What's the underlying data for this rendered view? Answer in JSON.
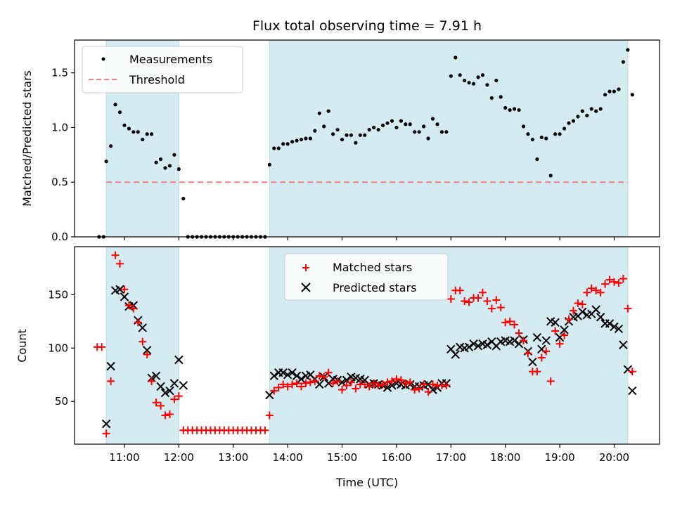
{
  "chart_data": {
    "type": "scatter",
    "title": "Flux total observing time = 7.91 h",
    "xlabel": "Time (UTC)",
    "x_tick_labels": [
      "11:00",
      "12:00",
      "13:00",
      "14:00",
      "15:00",
      "16:00",
      "17:00",
      "18:00",
      "19:00",
      "20:00"
    ],
    "xlim": [
      "10:05",
      "20:50"
    ],
    "shaded_regions": [
      {
        "start": "10:40",
        "end": "12:00"
      },
      {
        "start": "13:40",
        "end": "20:15"
      }
    ],
    "colors": {
      "shade": "#d4ebf2",
      "threshold": "#f08080",
      "matched": "#ff0000",
      "predicted": "#000000",
      "measurement": "#000000"
    },
    "top": {
      "ylabel": "Matched/Predicted stars",
      "ylim": [
        0,
        1.8
      ],
      "y_ticks": [
        0.0,
        0.5,
        1.0,
        1.5
      ],
      "threshold": 0.5,
      "threshold_x": [
        "10:40",
        "20:15"
      ],
      "legend": {
        "placement": "upper-left",
        "entries": [
          "Measurements",
          "Threshold"
        ]
      },
      "measurements": [
        [
          "10:32",
          0
        ],
        [
          "10:37",
          0
        ],
        [
          "10:40",
          0.69
        ],
        [
          "10:45",
          0.83
        ],
        [
          "10:50",
          1.21
        ],
        [
          "10:55",
          1.14
        ],
        [
          "11:00",
          1.02
        ],
        [
          "11:05",
          0.99
        ],
        [
          "11:10",
          0.96
        ],
        [
          "11:15",
          0.96
        ],
        [
          "11:20",
          0.89
        ],
        [
          "11:25",
          0.94
        ],
        [
          "11:30",
          0.94
        ],
        [
          "11:35",
          0.68
        ],
        [
          "11:40",
          0.71
        ],
        [
          "11:45",
          0.63
        ],
        [
          "11:50",
          0.65
        ],
        [
          "11:55",
          0.75
        ],
        [
          "12:00",
          0.62
        ],
        [
          "12:05",
          0.35
        ],
        [
          "12:10",
          0
        ],
        [
          "12:15",
          0
        ],
        [
          "12:20",
          0
        ],
        [
          "12:25",
          0
        ],
        [
          "12:30",
          0
        ],
        [
          "12:35",
          0
        ],
        [
          "12:40",
          0
        ],
        [
          "12:45",
          0
        ],
        [
          "12:50",
          0
        ],
        [
          "12:55",
          0
        ],
        [
          "13:00",
          0
        ],
        [
          "13:05",
          0
        ],
        [
          "13:10",
          0
        ],
        [
          "13:15",
          0
        ],
        [
          "13:20",
          0
        ],
        [
          "13:25",
          0
        ],
        [
          "13:30",
          0
        ],
        [
          "13:35",
          0
        ],
        [
          "13:40",
          0.66
        ],
        [
          "13:45",
          0.81
        ],
        [
          "13:50",
          0.81
        ],
        [
          "13:55",
          0.85
        ],
        [
          "14:00",
          0.85
        ],
        [
          "14:05",
          0.87
        ],
        [
          "14:10",
          0.88
        ],
        [
          "14:15",
          0.89
        ],
        [
          "14:20",
          0.9
        ],
        [
          "14:25",
          0.9
        ],
        [
          "14:30",
          0.97
        ],
        [
          "14:35",
          1.13
        ],
        [
          "14:40",
          1.01
        ],
        [
          "14:45",
          1.15
        ],
        [
          "14:50",
          0.94
        ],
        [
          "14:55",
          0.98
        ],
        [
          "15:00",
          0.89
        ],
        [
          "15:05",
          0.93
        ],
        [
          "15:10",
          0.93
        ],
        [
          "15:15",
          0.86
        ],
        [
          "15:20",
          0.93
        ],
        [
          "15:25",
          0.93
        ],
        [
          "15:30",
          0.98
        ],
        [
          "15:35",
          1.0
        ],
        [
          "15:40",
          0.98
        ],
        [
          "15:45",
          1.02
        ],
        [
          "15:50",
          1.04
        ],
        [
          "15:55",
          1.06
        ],
        [
          "16:00",
          1.0
        ],
        [
          "16:05",
          1.06
        ],
        [
          "16:10",
          1.03
        ],
        [
          "16:15",
          1.03
        ],
        [
          "16:20",
          0.96
        ],
        [
          "16:25",
          0.96
        ],
        [
          "16:30",
          1.01
        ],
        [
          "16:35",
          0.9
        ],
        [
          "16:40",
          1.08
        ],
        [
          "16:45",
          1.03
        ],
        [
          "16:50",
          0.96
        ],
        [
          "16:55",
          0.96
        ],
        [
          "17:00",
          1.47
        ],
        [
          "17:05",
          1.64
        ],
        [
          "17:10",
          1.48
        ],
        [
          "17:15",
          1.43
        ],
        [
          "17:20",
          1.41
        ],
        [
          "17:25",
          1.4
        ],
        [
          "17:30",
          1.46
        ],
        [
          "17:35",
          1.48
        ],
        [
          "17:40",
          1.39
        ],
        [
          "17:45",
          1.27
        ],
        [
          "17:50",
          1.43
        ],
        [
          "17:55",
          1.28
        ],
        [
          "18:00",
          1.18
        ],
        [
          "18:05",
          1.16
        ],
        [
          "18:10",
          1.17
        ],
        [
          "18:15",
          1.16
        ],
        [
          "18:20",
          1.01
        ],
        [
          "18:25",
          0.94
        ],
        [
          "18:30",
          0.89
        ],
        [
          "18:35",
          0.71
        ],
        [
          "18:40",
          0.91
        ],
        [
          "18:45",
          0.9
        ],
        [
          "18:50",
          0.56
        ],
        [
          "18:55",
          0.94
        ],
        [
          "19:00",
          0.94
        ],
        [
          "19:05",
          0.99
        ],
        [
          "19:10",
          1.04
        ],
        [
          "19:15",
          1.06
        ],
        [
          "19:20",
          1.1
        ],
        [
          "19:25",
          1.15
        ],
        [
          "19:30",
          1.11
        ],
        [
          "19:35",
          1.17
        ],
        [
          "19:40",
          1.15
        ],
        [
          "19:45",
          1.17
        ],
        [
          "19:50",
          1.3
        ],
        [
          "19:55",
          1.33
        ],
        [
          "20:00",
          1.33
        ],
        [
          "20:05",
          1.35
        ],
        [
          "20:10",
          1.6
        ],
        [
          "20:15",
          1.71
        ],
        [
          "20:20",
          1.3
        ]
      ]
    },
    "bottom": {
      "ylabel": "Count",
      "ylim": [
        10,
        195
      ],
      "y_ticks": [
        50,
        100,
        150
      ],
      "legend": {
        "placement": "upper-center",
        "entries": [
          "Matched stars",
          "Predicted stars"
        ]
      },
      "matched_stars": [
        [
          "10:30",
          101
        ],
        [
          "10:35",
          101
        ],
        [
          "10:40",
          20
        ],
        [
          "10:45",
          69
        ],
        [
          "10:50",
          187
        ],
        [
          "10:55",
          179
        ],
        [
          "11:00",
          155
        ],
        [
          "11:05",
          140
        ],
        [
          "11:10",
          137
        ],
        [
          "11:15",
          124
        ],
        [
          "11:20",
          106
        ],
        [
          "11:25",
          94
        ],
        [
          "11:30",
          69
        ],
        [
          "11:35",
          49
        ],
        [
          "11:40",
          46
        ],
        [
          "11:45",
          37
        ],
        [
          "11:50",
          38
        ],
        [
          "11:55",
          52
        ],
        [
          "12:00",
          55
        ],
        [
          "12:05",
          23
        ],
        [
          "12:10",
          23
        ],
        [
          "12:15",
          23
        ],
        [
          "12:20",
          23
        ],
        [
          "12:25",
          23
        ],
        [
          "12:30",
          23
        ],
        [
          "12:35",
          23
        ],
        [
          "12:40",
          23
        ],
        [
          "12:45",
          23
        ],
        [
          "12:50",
          23
        ],
        [
          "12:55",
          23
        ],
        [
          "13:00",
          23
        ],
        [
          "13:05",
          23
        ],
        [
          "13:10",
          23
        ],
        [
          "13:15",
          23
        ],
        [
          "13:20",
          23
        ],
        [
          "13:25",
          23
        ],
        [
          "13:30",
          23
        ],
        [
          "13:35",
          23
        ],
        [
          "13:40",
          37
        ],
        [
          "13:45",
          60
        ],
        [
          "13:50",
          63
        ],
        [
          "13:55",
          66
        ],
        [
          "14:00",
          64
        ],
        [
          "14:05",
          66
        ],
        [
          "14:10",
          67
        ],
        [
          "14:15",
          64
        ],
        [
          "14:20",
          67
        ],
        [
          "14:25",
          68
        ],
        [
          "14:30",
          69
        ],
        [
          "14:35",
          74
        ],
        [
          "14:40",
          73
        ],
        [
          "14:45",
          77
        ],
        [
          "14:50",
          67
        ],
        [
          "14:55",
          69
        ],
        [
          "15:00",
          61
        ],
        [
          "15:05",
          65
        ],
        [
          "15:10",
          68
        ],
        [
          "15:15",
          62
        ],
        [
          "15:20",
          66
        ],
        [
          "15:25",
          66
        ],
        [
          "15:30",
          64
        ],
        [
          "15:35",
          67
        ],
        [
          "15:40",
          65
        ],
        [
          "15:45",
          66
        ],
        [
          "15:50",
          68
        ],
        [
          "15:55",
          69
        ],
        [
          "16:00",
          71
        ],
        [
          "16:05",
          70
        ],
        [
          "16:10",
          67
        ],
        [
          "16:15",
          68
        ],
        [
          "16:20",
          61
        ],
        [
          "16:25",
          62
        ],
        [
          "16:30",
          66
        ],
        [
          "16:35",
          59
        ],
        [
          "16:40",
          66
        ],
        [
          "16:45",
          65
        ],
        [
          "16:50",
          65
        ],
        [
          "16:55",
          65
        ],
        [
          "17:00",
          146
        ],
        [
          "17:05",
          154
        ],
        [
          "17:10",
          154
        ],
        [
          "17:15",
          144
        ],
        [
          "17:20",
          143
        ],
        [
          "17:25",
          147
        ],
        [
          "17:30",
          147
        ],
        [
          "17:35",
          152
        ],
        [
          "17:40",
          144
        ],
        [
          "17:45",
          137
        ],
        [
          "17:50",
          145
        ],
        [
          "17:55",
          138
        ],
        [
          "18:00",
          124
        ],
        [
          "18:05",
          125
        ],
        [
          "18:10",
          122
        ],
        [
          "18:15",
          114
        ],
        [
          "18:20",
          107
        ],
        [
          "18:25",
          95
        ],
        [
          "18:30",
          78
        ],
        [
          "18:35",
          78
        ],
        [
          "18:40",
          91
        ],
        [
          "18:45",
          97
        ],
        [
          "18:50",
          69
        ],
        [
          "18:55",
          116
        ],
        [
          "19:00",
          104
        ],
        [
          "19:05",
          112
        ],
        [
          "19:10",
          127
        ],
        [
          "19:15",
          135
        ],
        [
          "19:20",
          142
        ],
        [
          "19:25",
          141
        ],
        [
          "19:30",
          152
        ],
        [
          "19:35",
          156
        ],
        [
          "19:40",
          154
        ],
        [
          "19:45",
          152
        ],
        [
          "19:50",
          160
        ],
        [
          "19:55",
          164
        ],
        [
          "20:00",
          162
        ],
        [
          "20:05",
          161
        ],
        [
          "20:10",
          165
        ],
        [
          "20:15",
          137
        ],
        [
          "20:20",
          78
        ]
      ],
      "predicted_stars": [
        [
          "10:40",
          29
        ],
        [
          "10:45",
          83
        ],
        [
          "10:50",
          154
        ],
        [
          "10:55",
          155
        ],
        [
          "11:00",
          148
        ],
        [
          "11:05",
          139
        ],
        [
          "11:10",
          140
        ],
        [
          "11:15",
          126
        ],
        [
          "11:20",
          119
        ],
        [
          "11:25",
          98
        ],
        [
          "11:30",
          72
        ],
        [
          "11:35",
          74
        ],
        [
          "11:40",
          64
        ],
        [
          "11:45",
          58
        ],
        [
          "11:50",
          60
        ],
        [
          "11:55",
          67
        ],
        [
          "12:00",
          89
        ],
        [
          "12:05",
          65
        ],
        [
          "13:40",
          56
        ],
        [
          "13:45",
          74
        ],
        [
          "13:50",
          77
        ],
        [
          "13:55",
          77
        ],
        [
          "14:00",
          75
        ],
        [
          "14:05",
          77
        ],
        [
          "14:10",
          74
        ],
        [
          "14:15",
          71
        ],
        [
          "14:20",
          74
        ],
        [
          "14:25",
          75
        ],
        [
          "14:30",
          71
        ],
        [
          "14:35",
          66
        ],
        [
          "14:40",
          73
        ],
        [
          "14:45",
          67
        ],
        [
          "14:50",
          71
        ],
        [
          "14:55",
          70
        ],
        [
          "15:00",
          68
        ],
        [
          "15:05",
          70
        ],
        [
          "15:10",
          73
        ],
        [
          "15:15",
          72
        ],
        [
          "15:20",
          71
        ],
        [
          "15:25",
          70
        ],
        [
          "15:30",
          66
        ],
        [
          "15:35",
          67
        ],
        [
          "15:40",
          66
        ],
        [
          "15:45",
          65
        ],
        [
          "15:50",
          63
        ],
        [
          "15:55",
          65
        ],
        [
          "16:00",
          67
        ],
        [
          "16:05",
          66
        ],
        [
          "16:10",
          65
        ],
        [
          "16:15",
          66
        ],
        [
          "16:20",
          64
        ],
        [
          "16:25",
          64
        ],
        [
          "16:30",
          65
        ],
        [
          "16:35",
          66
        ],
        [
          "16:40",
          61
        ],
        [
          "16:45",
          63
        ],
        [
          "16:50",
          67
        ],
        [
          "16:55",
          67
        ],
        [
          "17:00",
          99
        ],
        [
          "17:05",
          94
        ],
        [
          "17:10",
          101
        ],
        [
          "17:15",
          100
        ],
        [
          "17:20",
          101
        ],
        [
          "17:25",
          104
        ],
        [
          "17:30",
          102
        ],
        [
          "17:35",
          104
        ],
        [
          "17:40",
          103
        ],
        [
          "17:45",
          106
        ],
        [
          "17:50",
          102
        ],
        [
          "17:55",
          106
        ],
        [
          "18:00",
          107
        ],
        [
          "18:05",
          106
        ],
        [
          "18:10",
          107
        ],
        [
          "18:15",
          104
        ],
        [
          "18:20",
          108
        ],
        [
          "18:25",
          97
        ],
        [
          "18:30",
          87
        ],
        [
          "18:35",
          110
        ],
        [
          "18:40",
          99
        ],
        [
          "18:45",
          107
        ],
        [
          "18:50",
          125
        ],
        [
          "18:55",
          124
        ],
        [
          "19:00",
          110
        ],
        [
          "19:05",
          117
        ],
        [
          "19:10",
          125
        ],
        [
          "19:15",
          129
        ],
        [
          "19:20",
          130
        ],
        [
          "19:25",
          134
        ],
        [
          "19:30",
          131
        ],
        [
          "19:35",
          132
        ],
        [
          "19:40",
          136
        ],
        [
          "19:45",
          129
        ],
        [
          "19:50",
          123
        ],
        [
          "19:55",
          123
        ],
        [
          "20:00",
          120
        ],
        [
          "20:05",
          118
        ],
        [
          "20:10",
          103
        ],
        [
          "20:15",
          80
        ],
        [
          "20:20",
          60
        ]
      ]
    }
  }
}
